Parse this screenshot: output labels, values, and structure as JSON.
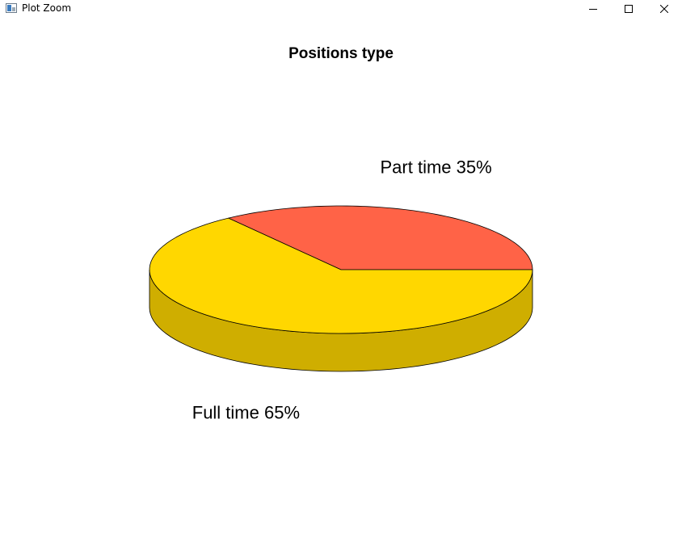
{
  "window": {
    "title": "Plot Zoom",
    "icons": {
      "app": "plot-window-icon",
      "minimize": "minimize-icon",
      "maximize": "maximize-icon",
      "close": "close-icon"
    }
  },
  "chart_data": {
    "type": "pie",
    "style": "3d",
    "title": "Positions type",
    "slices": [
      {
        "label": "Full time",
        "percent": 65,
        "value_label": "Full time 65%",
        "color": "#FFD700",
        "side_color": "#CFAE00"
      },
      {
        "label": "Part time",
        "percent": 35,
        "value_label": "Part time 35%",
        "color": "#FF6347",
        "side_color": "#CF5039"
      }
    ]
  }
}
